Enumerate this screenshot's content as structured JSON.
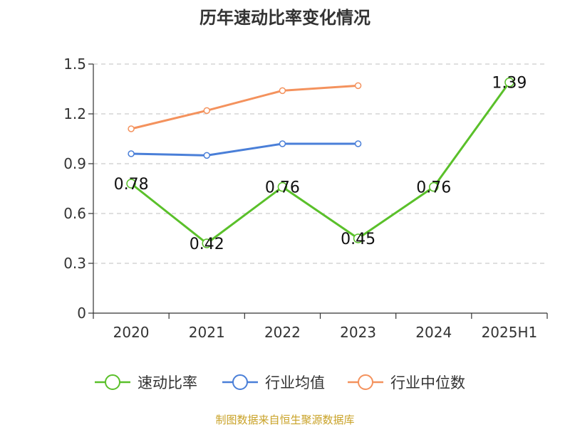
{
  "chart_data": {
    "type": "line",
    "title": "历年速动比率变化情况",
    "categories": [
      "2020",
      "2021",
      "2022",
      "2023",
      "2024",
      "2025H1"
    ],
    "ylim": [
      0,
      1.5
    ],
    "yticks": [
      "0",
      "0.3",
      "0.6",
      "0.9",
      "1.2",
      "1.5"
    ],
    "grid": true,
    "legend_position": "bottom",
    "series": [
      {
        "name": "速动比率",
        "color": "#5ac02a",
        "values": [
          0.78,
          0.42,
          0.76,
          0.45,
          0.76,
          1.39
        ],
        "labels": [
          "0.78",
          "0.42",
          "0.76",
          "0.45",
          "0.76",
          "1.39"
        ]
      },
      {
        "name": "行业均值",
        "color": "#4a7fd8",
        "values": [
          0.96,
          0.95,
          1.02,
          1.02,
          null,
          null
        ]
      },
      {
        "name": "行业中位数",
        "color": "#f4925d",
        "values": [
          1.11,
          1.22,
          1.34,
          1.37,
          null,
          null
        ]
      }
    ],
    "source": "制图数据来自恒生聚源数据库"
  }
}
